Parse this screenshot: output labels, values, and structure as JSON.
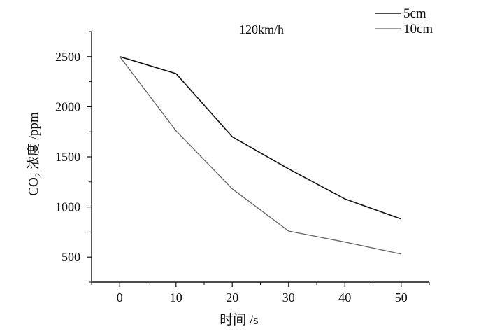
{
  "chart_data": {
    "type": "line",
    "title": "120km/h",
    "xlabel": "时间 /s",
    "ylabel_main": "CO",
    "ylabel_sub": "2",
    "ylabel_rest": " 浓度 /ppm",
    "xlim": [
      -5,
      55
    ],
    "ylim": [
      250,
      2750
    ],
    "xticks": [
      0,
      10,
      20,
      30,
      40,
      50
    ],
    "yticks": [
      500,
      1000,
      1500,
      2000,
      2500
    ],
    "x": [
      0,
      10,
      20,
      30,
      40,
      50
    ],
    "series": [
      {
        "name": "5cm",
        "color": "#111111",
        "values": [
          2500,
          2330,
          1700,
          1380,
          1080,
          880
        ]
      },
      {
        "name": "10cm",
        "color": "#666666",
        "values": [
          2500,
          1760,
          1180,
          760,
          650,
          530
        ]
      }
    ],
    "legend_position": "top-right"
  }
}
